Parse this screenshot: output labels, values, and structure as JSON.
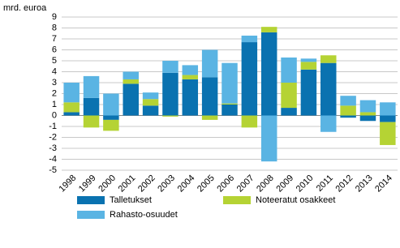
{
  "chart_data": {
    "type": "stacked-bar",
    "y_label": "mrd. euroa",
    "categories": [
      "1998",
      "1999",
      "2000",
      "2001",
      "2002",
      "2003",
      "2004",
      "2005",
      "2006",
      "2007",
      "2008",
      "2009",
      "2010",
      "2011",
      "2012",
      "2013",
      "2014"
    ],
    "series": [
      {
        "name": "Talletukset",
        "color": "#0a72b0",
        "values": [
          0.3,
          1.6,
          -0.4,
          2.9,
          0.9,
          3.9,
          3.3,
          3.5,
          1.0,
          6.7,
          7.6,
          0.7,
          4.2,
          4.8,
          -0.2,
          -0.5,
          -0.6
        ]
      },
      {
        "name": "Noteeratut osakkeet",
        "color": "#b5d334",
        "values": [
          0.9,
          -1.1,
          -1.0,
          0.4,
          0.6,
          -0.1,
          0.4,
          -0.4,
          0.1,
          -1.1,
          0.5,
          2.3,
          0.7,
          0.7,
          0.9,
          0.3,
          -2.1
        ]
      },
      {
        "name": "Rahasto-osuudet",
        "color": "#5ab4e3",
        "values": [
          1.8,
          2.0,
          2.0,
          0.7,
          0.6,
          1.1,
          0.9,
          2.5,
          3.7,
          0.6,
          -4.2,
          2.3,
          0.3,
          -1.5,
          0.9,
          1.1,
          1.2
        ]
      }
    ],
    "ylim": [
      -5,
      9
    ],
    "yticks": [
      -5,
      -4,
      -3,
      -2,
      -1,
      0,
      1,
      2,
      3,
      4,
      5,
      6,
      7,
      8,
      9
    ],
    "grid": true
  }
}
